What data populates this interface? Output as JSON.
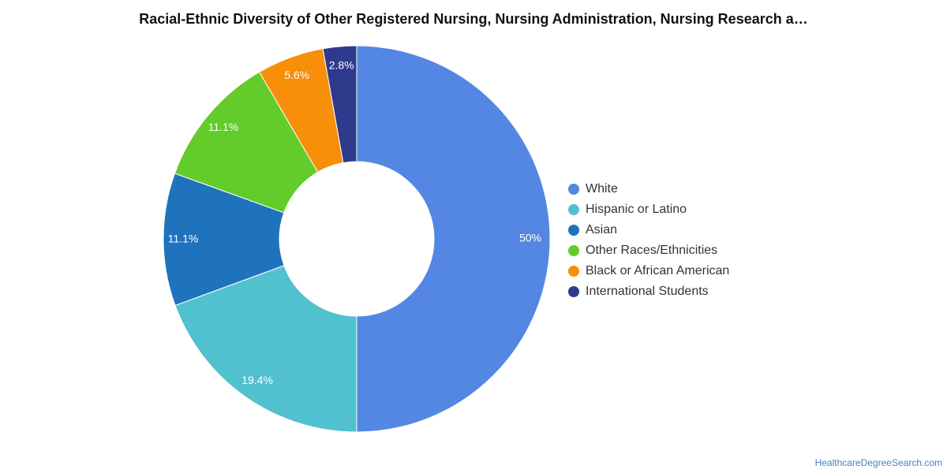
{
  "chart_data": {
    "type": "pie",
    "title": "Racial-Ethnic Diversity of Other Registered Nursing, Nursing Administration, Nursing Research a…",
    "legend_position": "right",
    "donut": true,
    "start_angle_deg": 0,
    "direction": "clockwise",
    "slices": [
      {
        "label": "White",
        "value": 50,
        "display": "50%",
        "color": "#5387e3"
      },
      {
        "label": "Hispanic or Latino",
        "value": 19.4,
        "display": "19.4%",
        "color": "#52c1cf"
      },
      {
        "label": "Asian",
        "value": 11.1,
        "display": "11.1%",
        "color": "#1f73bd"
      },
      {
        "label": "Other Races/Ethnicities",
        "value": 11.1,
        "display": "11.1%",
        "color": "#63cc2a"
      },
      {
        "label": "Black or African American",
        "value": 5.6,
        "display": "5.6%",
        "color": "#f78f09"
      },
      {
        "label": "International Students",
        "value": 2.8,
        "display": "2.8%",
        "color": "#2e3a8c"
      }
    ]
  },
  "source": {
    "label": "HealthcareDegreeSearch.com"
  }
}
